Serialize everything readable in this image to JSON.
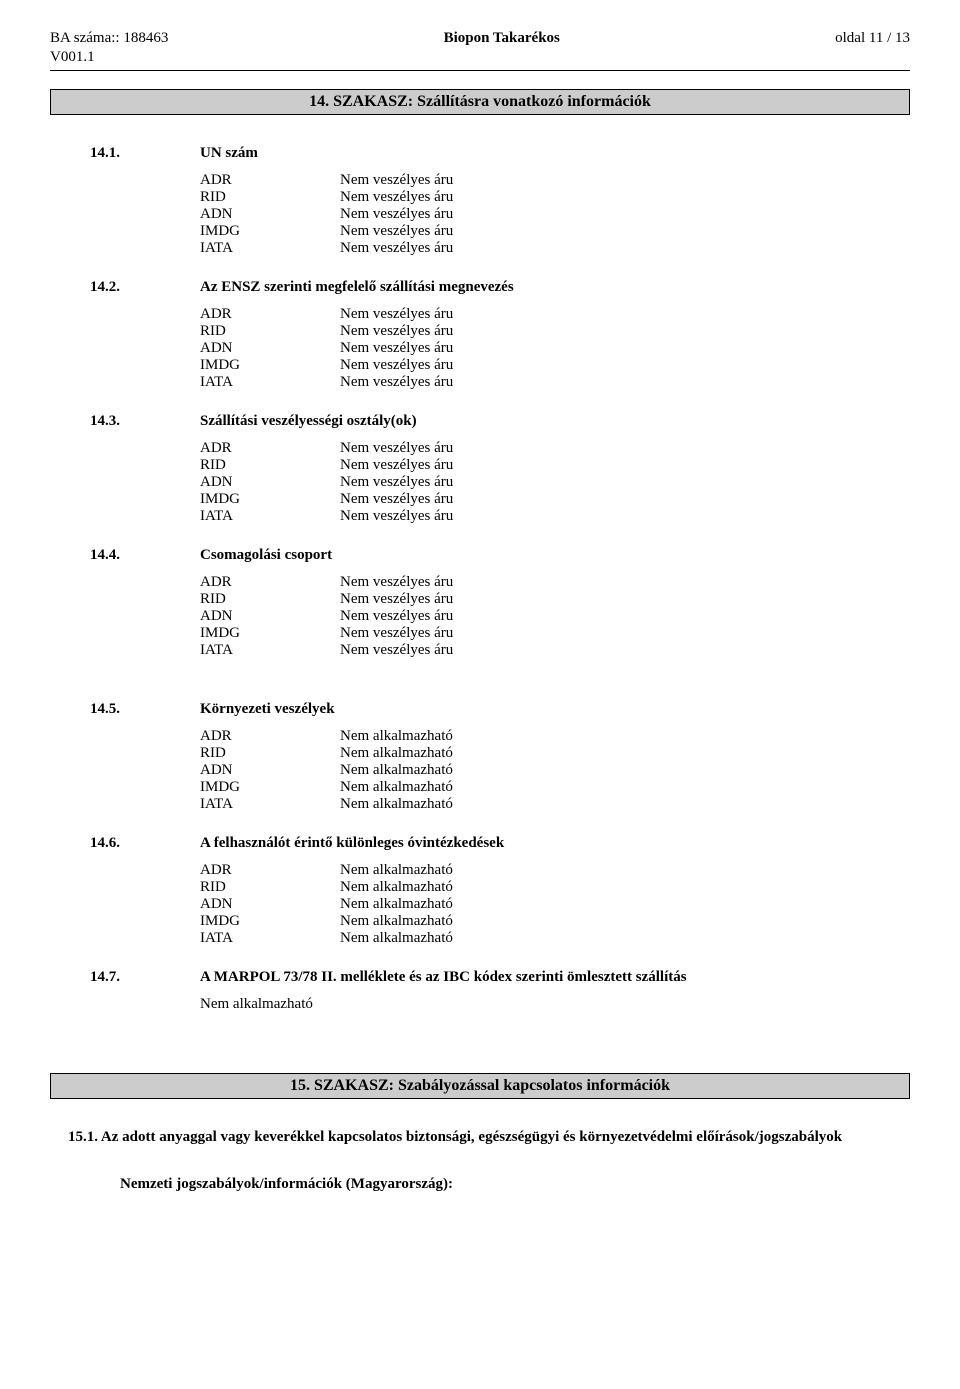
{
  "header": {
    "ba_label": "BA száma::",
    "ba_number": "188463",
    "version": "V001.1",
    "product": "Biopon Takarékos",
    "page": "oldal 11 / 13"
  },
  "section14": {
    "title": "14. SZAKASZ: Szállításra vonatkozó információk",
    "subs": [
      {
        "num": "14.1.",
        "title": "UN szám",
        "type": "pairs",
        "v": "Nem veszélyes áru"
      },
      {
        "num": "14.2.",
        "title": "Az ENSZ szerinti megfelelő szállítási megnevezés",
        "type": "pairs",
        "v": "Nem veszélyes áru"
      },
      {
        "num": "14.3.",
        "title": "Szállítási veszélyességi osztály(ok)",
        "type": "pairs",
        "v": "Nem veszélyes áru"
      },
      {
        "num": "14.4.",
        "title": "Csomagolási csoport",
        "type": "pairs",
        "v": "Nem veszélyes áru"
      },
      {
        "num": "14.5.",
        "title": "Környezeti veszélyek",
        "type": "pairs",
        "v": "Nem alkalmazható",
        "gap": true
      },
      {
        "num": "14.6.",
        "title": "A felhasználót érintő különleges óvintézkedések",
        "type": "pairs",
        "v": "Nem alkalmazható"
      },
      {
        "num": "14.7.",
        "title": "A MARPOL 73/78 II. melléklete és az IBC kódex szerinti ömlesztett szállítás",
        "type": "single",
        "single": "Nem alkalmazható"
      }
    ],
    "keys": [
      "ADR",
      "RID",
      "ADN",
      "IMDG",
      "IATA"
    ]
  },
  "section15": {
    "title": "15. SZAKASZ: Szabályozással kapcsolatos információk",
    "sub1": "15.1. Az adott anyaggal vagy keverékkel kapcsolatos biztonsági, egészségügyi és környezetvédelmi előírások/jogszabályok",
    "national": "Nemzeti jogszabályok/információk (Magyarország):"
  }
}
